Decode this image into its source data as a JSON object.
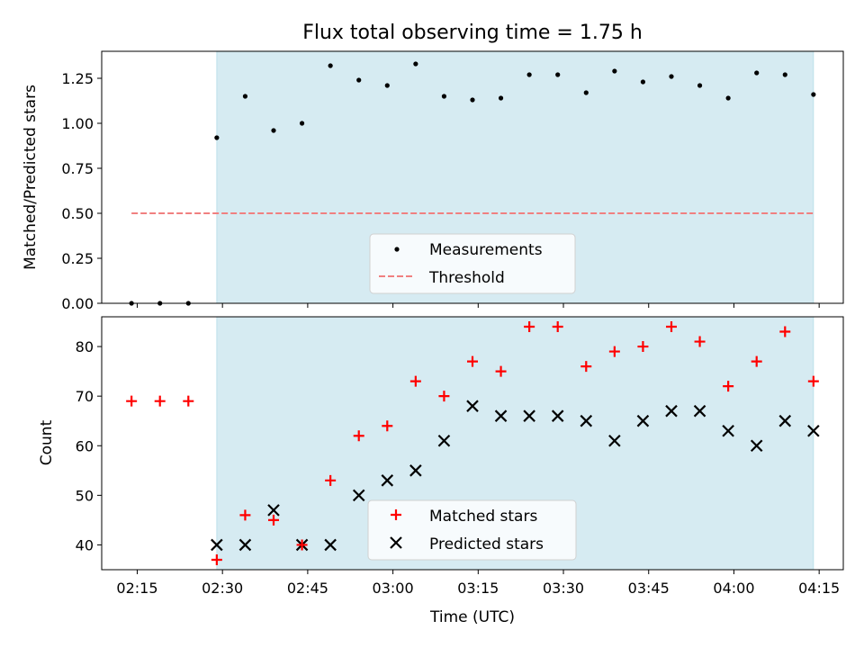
{
  "chart_data": [
    {
      "type": "scatter",
      "title": "Flux total observing time = 1.75 h",
      "ylabel": "Matched/Predicted stars",
      "xlabel": "",
      "ylim": [
        0,
        1.4
      ],
      "yticks": [
        "0.00",
        "0.25",
        "0.50",
        "0.75",
        "1.00",
        "1.25"
      ],
      "shaded_region": [
        "02:29",
        "04:14"
      ],
      "shaded_color": "#add8e6",
      "legend": "lower center",
      "series": [
        {
          "name": "Measurements",
          "marker": "dot",
          "color": "#000000",
          "x": [
            "02:14",
            "02:19",
            "02:24",
            "02:29",
            "02:34",
            "02:39",
            "02:44",
            "02:49",
            "02:54",
            "02:59",
            "03:04",
            "03:09",
            "03:14",
            "03:19",
            "03:24",
            "03:29",
            "03:34",
            "03:39",
            "03:44",
            "03:49",
            "03:54",
            "03:59",
            "04:04",
            "04:09",
            "04:14"
          ],
          "y": [
            0.0,
            0.0,
            0.0,
            0.92,
            1.15,
            0.96,
            1.0,
            1.32,
            1.24,
            1.21,
            1.33,
            1.15,
            1.13,
            1.14,
            1.27,
            1.27,
            1.17,
            1.29,
            1.23,
            1.26,
            1.21,
            1.14,
            1.28,
            1.27,
            1.16
          ]
        },
        {
          "name": "Threshold",
          "type": "line",
          "style": "dashed",
          "color": "#f08080",
          "x": [
            "02:14",
            "04:14"
          ],
          "y": [
            0.5,
            0.5
          ]
        }
      ]
    },
    {
      "type": "scatter",
      "title": "",
      "ylabel": "Count",
      "xlabel": "Time (UTC)",
      "ylim": [
        35,
        86
      ],
      "yticks": [
        "40",
        "50",
        "60",
        "70",
        "80"
      ],
      "xticks": [
        "02:15",
        "02:30",
        "02:45",
        "03:00",
        "03:15",
        "03:30",
        "03:45",
        "04:00",
        "04:15"
      ],
      "shaded_region": [
        "02:29",
        "04:14"
      ],
      "shaded_color": "#add8e6",
      "legend": "lower center",
      "series": [
        {
          "name": "Matched stars",
          "marker": "plus",
          "color": "#ff0000",
          "x": [
            "02:14",
            "02:19",
            "02:24",
            "02:29",
            "02:34",
            "02:39",
            "02:44",
            "02:49",
            "02:54",
            "02:59",
            "03:04",
            "03:09",
            "03:14",
            "03:19",
            "03:24",
            "03:29",
            "03:34",
            "03:39",
            "03:44",
            "03:49",
            "03:54",
            "03:59",
            "04:04",
            "04:09",
            "04:14"
          ],
          "y": [
            69,
            69,
            69,
            37,
            46,
            45,
            40,
            53,
            62,
            64,
            73,
            70,
            77,
            75,
            84,
            84,
            76,
            79,
            80,
            84,
            81,
            72,
            77,
            83,
            73
          ]
        },
        {
          "name": "Predicted stars",
          "marker": "x",
          "color": "#000000",
          "x": [
            "02:29",
            "02:34",
            "02:39",
            "02:44",
            "02:49",
            "02:54",
            "02:59",
            "03:04",
            "03:09",
            "03:14",
            "03:19",
            "03:24",
            "03:29",
            "03:34",
            "03:39",
            "03:44",
            "03:49",
            "03:54",
            "03:59",
            "04:04",
            "04:09",
            "04:14"
          ],
          "y": [
            40,
            40,
            47,
            40,
            40,
            50,
            53,
            55,
            61,
            68,
            66,
            66,
            66,
            65,
            61,
            65,
            67,
            67,
            63,
            60,
            65,
            63
          ]
        }
      ]
    }
  ]
}
